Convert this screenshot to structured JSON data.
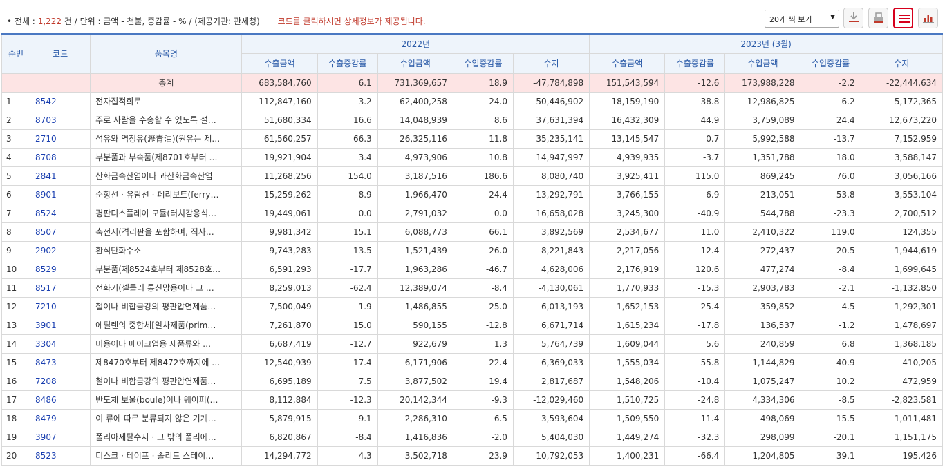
{
  "summary": {
    "bullet": "•",
    "total_label": "전체 :",
    "total_count": "1,222",
    "total_unit": "건",
    "unit_text": "/ 단위 : 금액 - 천불, 증감률 - % / (제공기관: 관세청)",
    "note": "코드를 클릭하시면 상세정보가 제공됩니다."
  },
  "toolbar": {
    "perpage_label": "20개 씩 보기",
    "icons": [
      "download-icon",
      "print-icon",
      "list-icon",
      "chart-icon"
    ],
    "active_color": "#d6001c"
  },
  "table": {
    "col_seq": "순번",
    "col_code": "코드",
    "col_name": "품목명",
    "period1": "2022년",
    "period2": "2023년 (3월)",
    "sub": [
      "수출금액",
      "수출증감률",
      "수입금액",
      "수입증감률",
      "수지"
    ],
    "total_label": "총계",
    "total_values": [
      "683,584,760",
      "6.1",
      "731,369,657",
      "18.9",
      "-47,784,898",
      "151,543,594",
      "-12.6",
      "173,988,228",
      "-2.2",
      "-22,444,634"
    ],
    "rows": [
      {
        "seq": "1",
        "code": "8542",
        "name": "전자집적회로",
        "v": [
          "112,847,160",
          "3.2",
          "62,400,258",
          "24.0",
          "50,446,902",
          "18,159,190",
          "-38.8",
          "12,986,825",
          "-6.2",
          "5,172,365"
        ]
      },
      {
        "seq": "2",
        "code": "8703",
        "name": "주로 사람을 수송할 수 있도록 설…",
        "v": [
          "51,680,334",
          "16.6",
          "14,048,939",
          "8.6",
          "37,631,394",
          "16,432,309",
          "44.9",
          "3,759,089",
          "24.4",
          "12,673,220"
        ]
      },
      {
        "seq": "3",
        "code": "2710",
        "name": "석유와 역청유(瀝青油)(원유는 제…",
        "v": [
          "61,560,257",
          "66.3",
          "26,325,116",
          "11.8",
          "35,235,141",
          "13,145,547",
          "0.7",
          "5,992,588",
          "-13.7",
          "7,152,959"
        ]
      },
      {
        "seq": "4",
        "code": "8708",
        "name": "부분품과 부속품(제8701호부터 …",
        "v": [
          "19,921,904",
          "3.4",
          "4,973,906",
          "10.8",
          "14,947,997",
          "4,939,935",
          "-3.7",
          "1,351,788",
          "18.0",
          "3,588,147"
        ]
      },
      {
        "seq": "5",
        "code": "2841",
        "name": "산화금속산염이나 과산화금속산염",
        "v": [
          "11,268,256",
          "154.0",
          "3,187,516",
          "186.6",
          "8,080,740",
          "3,925,411",
          "115.0",
          "869,245",
          "76.0",
          "3,056,166"
        ]
      },
      {
        "seq": "6",
        "code": "8901",
        "name": "순항선 · 유람선 · 페리보트(ferry…",
        "v": [
          "15,259,262",
          "-8.9",
          "1,966,470",
          "-24.4",
          "13,292,791",
          "3,766,155",
          "6.9",
          "213,051",
          "-53.8",
          "3,553,104"
        ]
      },
      {
        "seq": "7",
        "code": "8524",
        "name": "평판디스플레이 모듈(터치감응식…",
        "v": [
          "19,449,061",
          "0.0",
          "2,791,032",
          "0.0",
          "16,658,028",
          "3,245,300",
          "-40.9",
          "544,788",
          "-23.3",
          "2,700,512"
        ]
      },
      {
        "seq": "8",
        "code": "8507",
        "name": "축전지(격리판을 포함하며, 직사…",
        "v": [
          "9,981,342",
          "15.1",
          "6,088,773",
          "66.1",
          "3,892,569",
          "2,534,677",
          "11.0",
          "2,410,322",
          "119.0",
          "124,355"
        ]
      },
      {
        "seq": "9",
        "code": "2902",
        "name": "환식탄화수소",
        "v": [
          "9,743,283",
          "13.5",
          "1,521,439",
          "26.0",
          "8,221,843",
          "2,217,056",
          "-12.4",
          "272,437",
          "-20.5",
          "1,944,619"
        ]
      },
      {
        "seq": "10",
        "code": "8529",
        "name": "부분품(제8524호부터 제8528호…",
        "v": [
          "6,591,293",
          "-17.7",
          "1,963,286",
          "-46.7",
          "4,628,006",
          "2,176,919",
          "120.6",
          "477,274",
          "-8.4",
          "1,699,645"
        ]
      },
      {
        "seq": "11",
        "code": "8517",
        "name": "전화기(셀룰러 통신망용이나 그 …",
        "v": [
          "8,259,013",
          "-62.4",
          "12,389,074",
          "-8.4",
          "-4,130,061",
          "1,770,933",
          "-15.3",
          "2,903,783",
          "-2.1",
          "-1,132,850"
        ]
      },
      {
        "seq": "12",
        "code": "7210",
        "name": "철이나 비합금강의 평판압연제품…",
        "v": [
          "7,500,049",
          "1.9",
          "1,486,855",
          "-25.0",
          "6,013,193",
          "1,652,153",
          "-25.4",
          "359,852",
          "4.5",
          "1,292,301"
        ]
      },
      {
        "seq": "13",
        "code": "3901",
        "name": "에틸렌의 중합체[일차제품(prim…",
        "v": [
          "7,261,870",
          "15.0",
          "590,155",
          "-12.8",
          "6,671,714",
          "1,615,234",
          "-17.8",
          "136,537",
          "-1.2",
          "1,478,697"
        ]
      },
      {
        "seq": "14",
        "code": "3304",
        "name": "미용이나 메이크업용 제품류와 …",
        "v": [
          "6,687,419",
          "-12.7",
          "922,679",
          "1.3",
          "5,764,739",
          "1,609,044",
          "5.6",
          "240,859",
          "6.8",
          "1,368,185"
        ]
      },
      {
        "seq": "15",
        "code": "8473",
        "name": "제8470호부터 제8472호까지에 …",
        "v": [
          "12,540,939",
          "-17.4",
          "6,171,906",
          "22.4",
          "6,369,033",
          "1,555,034",
          "-55.8",
          "1,144,829",
          "-40.9",
          "410,205"
        ]
      },
      {
        "seq": "16",
        "code": "7208",
        "name": "철이나 비합금강의 평판압연제품…",
        "v": [
          "6,695,189",
          "7.5",
          "3,877,502",
          "19.4",
          "2,817,687",
          "1,548,206",
          "-10.4",
          "1,075,247",
          "10.2",
          "472,959"
        ]
      },
      {
        "seq": "17",
        "code": "8486",
        "name": "반도체 보울(boule)이나 웨이퍼(…",
        "v": [
          "8,112,884",
          "-12.3",
          "20,142,344",
          "-9.3",
          "-12,029,460",
          "1,510,725",
          "-24.8",
          "4,334,306",
          "-8.5",
          "-2,823,581"
        ]
      },
      {
        "seq": "18",
        "code": "8479",
        "name": "이 류에 따로 분류되지 않은 기계…",
        "v": [
          "5,879,915",
          "9.1",
          "2,286,310",
          "-6.5",
          "3,593,604",
          "1,509,550",
          "-11.4",
          "498,069",
          "-15.5",
          "1,011,481"
        ]
      },
      {
        "seq": "19",
        "code": "3907",
        "name": "폴리아세탈수지 · 그 밖의 폴리에…",
        "v": [
          "6,820,867",
          "-8.4",
          "1,416,836",
          "-2.0",
          "5,404,030",
          "1,449,274",
          "-32.3",
          "298,099",
          "-20.1",
          "1,151,175"
        ]
      },
      {
        "seq": "20",
        "code": "8523",
        "name": "디스크 · 테이프 · 솔리드 스테이…",
        "v": [
          "14,294,772",
          "4.3",
          "3,502,718",
          "23.9",
          "10,792,053",
          "1,400,231",
          "-66.4",
          "1,204,805",
          "39.1",
          "195,426"
        ]
      }
    ]
  }
}
